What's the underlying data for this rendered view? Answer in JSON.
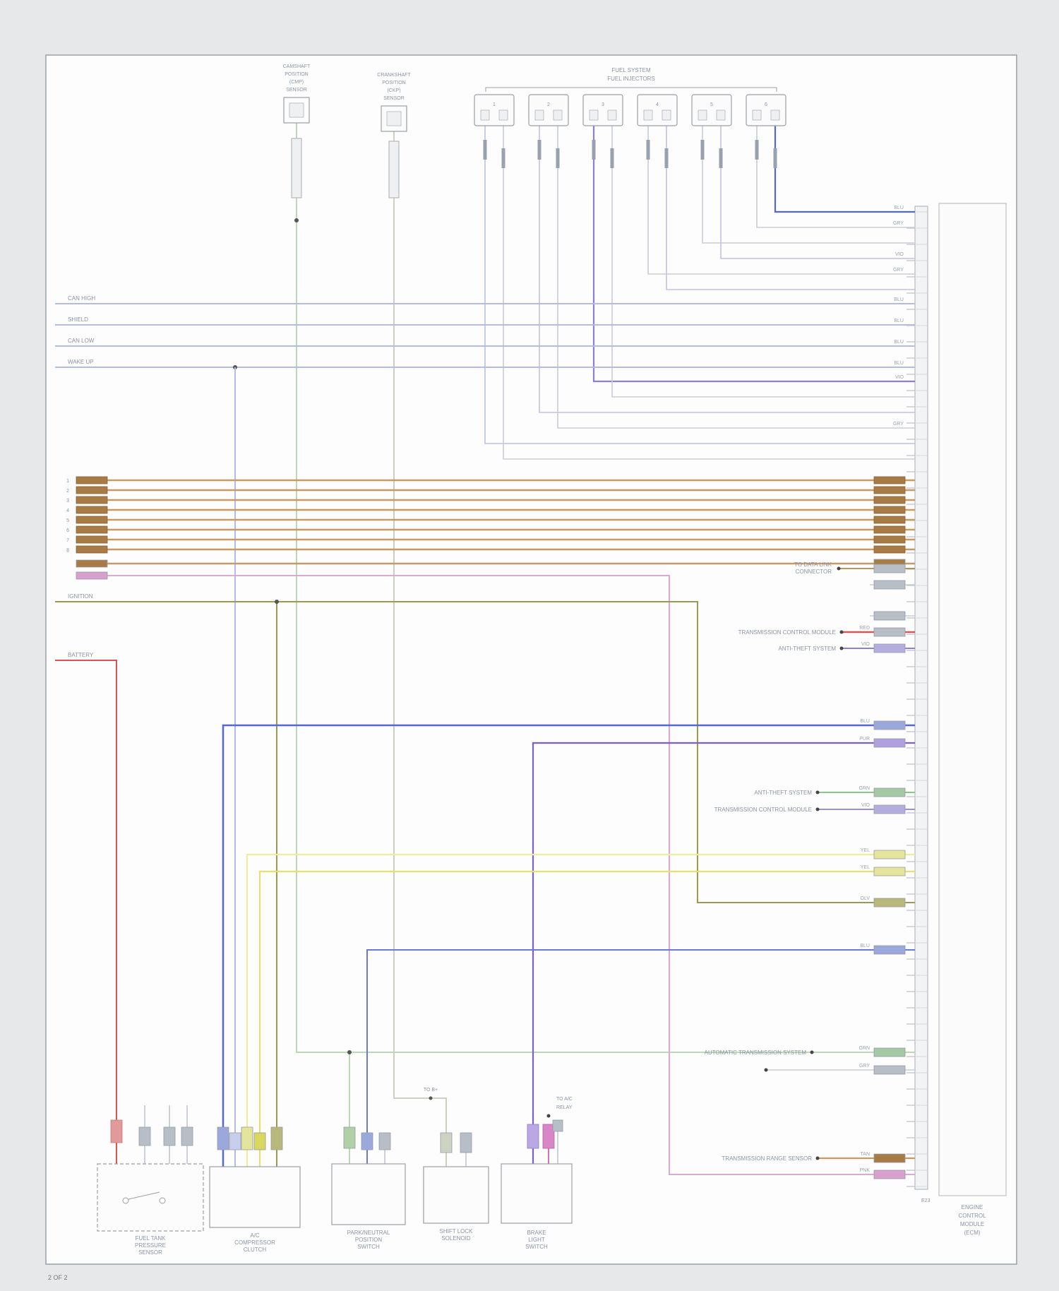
{
  "palette": {
    "gray_wire": "#c9cdd4",
    "pale_blue": "#b9c2ea",
    "blue": "#5468d4",
    "blue2": "#6a79d8",
    "violet": "#8d7fd6",
    "pale_violet": "#c6bfe8",
    "tan": "#c89a62",
    "tan_dark": "#a87b45",
    "pink": "#e0a6d6",
    "magenta": "#d86fc0",
    "red": "#e05252",
    "yellow": "#e2e270",
    "pale_yellow": "#ededa0",
    "olive": "#9b9b4e",
    "green": "#8cc88c",
    "pale_green": "#bcd8b4",
    "purple": "#7e5fd0",
    "chip": "#b8bec6"
  },
  "page": {
    "footer": "2 OF 2"
  },
  "injectors": {
    "header1": "FUEL SYSTEM",
    "header2": "FUEL INJECTORS",
    "numbers": [
      "1",
      "2",
      "3",
      "4",
      "5",
      "6"
    ]
  },
  "component_a": {
    "l1": "CAMSHAFT",
    "l2": "POSITION",
    "l3": "(CMP)",
    "l4": "SENSOR"
  },
  "component_b": {
    "l1": "CRANKSHAFT",
    "l2": "POSITION",
    "l3": "(CKP)",
    "l4": "SENSOR"
  },
  "left": {
    "bus_labels": [
      "CAN HIGH",
      "SHIELD",
      "CAN LOW",
      "WAKE UP"
    ],
    "ignition": "IGNITION",
    "battery": "BATTERY",
    "bundle_pins": [
      "1",
      "2",
      "3",
      "4",
      "5",
      "6",
      "7",
      "8"
    ]
  },
  "right_labels": {
    "data_link_1": "TO DATA LINK",
    "data_link_2": "CONNECTOR",
    "tcm_1": "TRANSMISSION CONTROL MODULE",
    "theft_1": "ANTI-THEFT SYSTEM",
    "theft_2": "ANTI-THEFT SYSTEM",
    "tcm_2": "TRANSMISSION CONTROL MODULE",
    "auto_trans": "AUTOMATIC TRANSMISSION SYSTEM",
    "range_sensor": "TRANSMISSION RANGE SENSOR",
    "ac_relay_1": "TO A/C",
    "ac_relay_2": "RELAY",
    "b_plus": "TO B+"
  },
  "module": {
    "l1": "ENGINE",
    "l2": "CONTROL",
    "l3": "MODULE",
    "l4": "(ECM)",
    "connector": "E23"
  },
  "components": {
    "c1": {
      "l1": "FUEL TANK",
      "l2": "PRESSURE",
      "l3": "SENSOR"
    },
    "c2": {
      "l1": "A/C",
      "l2": "COMPRESSOR",
      "l3": "CLUTCH"
    },
    "c3": {
      "l1": "PARK/NEUTRAL",
      "l2": "POSITION",
      "l3": "SWITCH"
    },
    "c4": {
      "l1": "SHIFT LOCK",
      "l2": "SOLENOID",
      "l3": ""
    },
    "c5": {
      "l1": "BRAKE",
      "l2": "LIGHT",
      "l3": "SWITCH"
    }
  },
  "wire_codes": [
    "BLU",
    "GRY",
    "VIO",
    "GRY",
    "VIO",
    "GRY",
    "BLU",
    "BLU",
    "BLU",
    "BLU",
    "RED",
    "VIO",
    "BLU",
    "PUR",
    "GRN",
    "VIO",
    "YEL",
    "YEL",
    "OLV",
    "BLU",
    "GRN",
    "GRY",
    "TAN",
    "PNK"
  ]
}
